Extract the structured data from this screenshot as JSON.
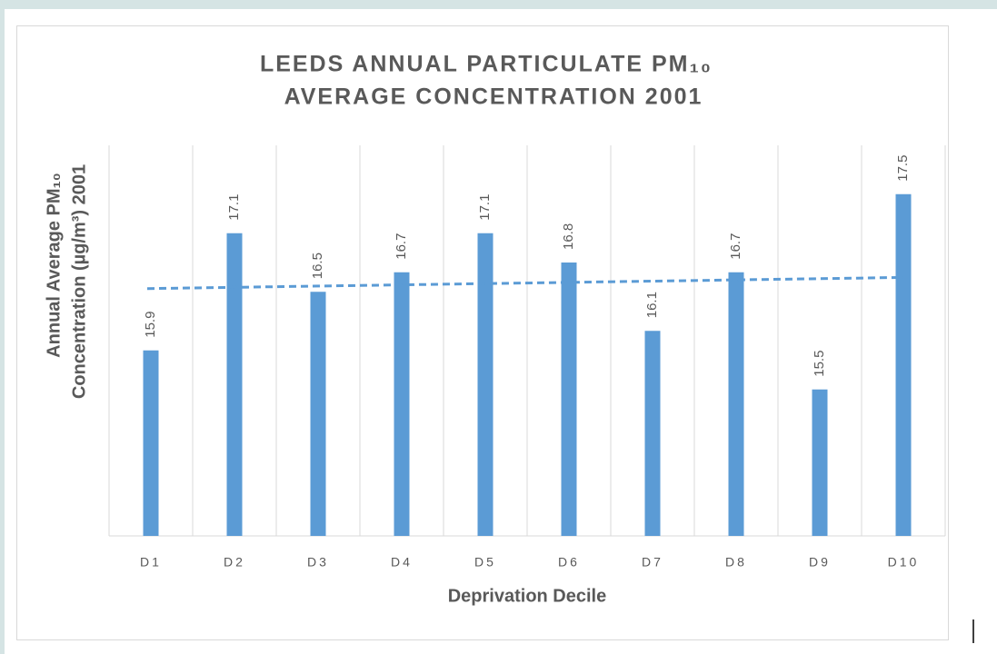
{
  "chart_data": {
    "type": "bar",
    "title": [
      "LEEDS ANNUAL PARTICULATE PM₁₀",
      "AVERAGE CONCENTRATION 2001"
    ],
    "x_label": "Deprivation Decile",
    "y_label": [
      "Annual Average PM₁₀",
      "Concentration (µg/m³) 2001"
    ],
    "categories": [
      "D1",
      "D2",
      "D3",
      "D4",
      "D5",
      "D6",
      "D7",
      "D8",
      "D9",
      "D10"
    ],
    "values": [
      15.9,
      17.1,
      16.5,
      16.7,
      17.1,
      16.8,
      16.1,
      16.7,
      15.5,
      17.5
    ],
    "color": "#5b9bd5",
    "ylim": [
      14,
      18
    ],
    "trendline": "linear",
    "grid": true
  }
}
